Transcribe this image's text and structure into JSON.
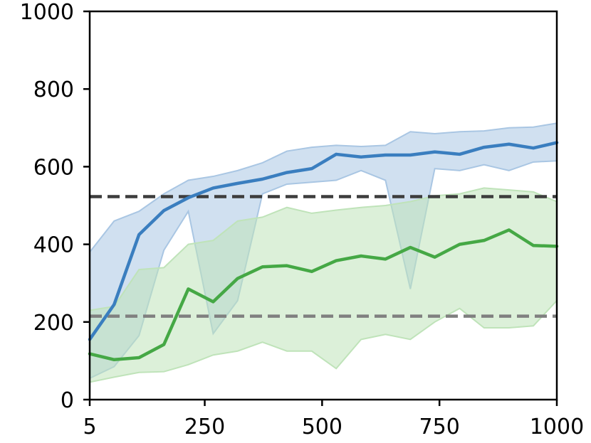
{
  "chart_data": {
    "type": "line",
    "title": "",
    "xlabel": "",
    "ylabel": "",
    "xlim": [
      5,
      1000
    ],
    "ylim": [
      0,
      1000
    ],
    "xticks": [
      5,
      250,
      500,
      750,
      1000
    ],
    "xtick_labels": [
      "5",
      "250",
      "500",
      "750",
      "1000"
    ],
    "yticks": [
      0,
      200,
      400,
      600,
      800,
      1000
    ],
    "ytick_labels": [
      "0",
      "200",
      "400",
      "600",
      "800",
      "1000"
    ],
    "grid": false,
    "legend": "none",
    "series": [
      {
        "color": "#3a7ebf",
        "fill_color": "#a9c6e3",
        "x": [
          5,
          57,
          110,
          163,
          215,
          268,
          320,
          373,
          425,
          478,
          530,
          583,
          635,
          688,
          740,
          793,
          845,
          898,
          950,
          1000
        ],
        "y": [
          155,
          245,
          425,
          487,
          520,
          545,
          557,
          568,
          585,
          595,
          632,
          625,
          630,
          630,
          638,
          632,
          650,
          658,
          648,
          662
        ],
        "lower": [
          55,
          85,
          165,
          385,
          485,
          170,
          255,
          530,
          555,
          560,
          565,
          590,
          565,
          285,
          595,
          590,
          605,
          590,
          612,
          615
        ],
        "upper": [
          380,
          460,
          485,
          530,
          565,
          575,
          590,
          610,
          640,
          650,
          655,
          652,
          655,
          690,
          685,
          690,
          692,
          700,
          702,
          712
        ]
      },
      {
        "color": "#45a845",
        "fill_color": "#bfe3b9",
        "x": [
          5,
          57,
          110,
          163,
          215,
          268,
          320,
          373,
          425,
          478,
          530,
          583,
          635,
          688,
          740,
          793,
          845,
          898,
          950,
          1000
        ],
        "y": [
          118,
          103,
          108,
          142,
          285,
          252,
          312,
          342,
          345,
          330,
          358,
          370,
          362,
          392,
          367,
          400,
          410,
          437,
          397,
          395
        ],
        "lower": [
          45,
          58,
          70,
          72,
          90,
          115,
          125,
          148,
          125,
          125,
          80,
          155,
          168,
          155,
          200,
          235,
          185,
          185,
          190,
          255
        ],
        "upper": [
          230,
          240,
          335,
          340,
          400,
          410,
          460,
          470,
          495,
          480,
          488,
          495,
          500,
          510,
          525,
          530,
          545,
          540,
          535,
          510
        ]
      }
    ],
    "reference_lines": [
      {
        "y": 523,
        "color": "#3d3d3d",
        "style": "dashed"
      },
      {
        "y": 215,
        "color": "#808080",
        "style": "dashed"
      }
    ]
  }
}
